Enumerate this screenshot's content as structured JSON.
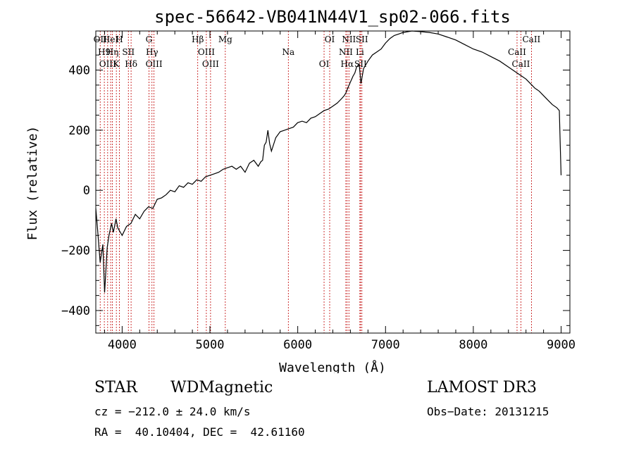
{
  "chart_data": {
    "type": "line",
    "title": "spec-56642-VB041N44V1_sp02-066.fits",
    "xlabel": "Wavelength (Å)",
    "ylabel": "Flux (relative)",
    "xlim": [
      3700,
      9100
    ],
    "ylim": [
      -475,
      530
    ],
    "xticks": [
      4000,
      5000,
      6000,
      7000,
      8000,
      9000
    ],
    "xtick_labels": [
      "4000",
      "5000",
      "6000",
      "7000",
      "8000",
      "9000"
    ],
    "yticks": [
      -400,
      -200,
      0,
      200,
      400
    ],
    "ytick_labels": [
      "−400",
      "−200",
      "0",
      "200",
      "400"
    ],
    "series": [
      {
        "name": "spectrum",
        "x": [
          3700,
          3720,
          3750,
          3780,
          3800,
          3830,
          3850,
          3880,
          3900,
          3930,
          3950,
          3980,
          4000,
          4050,
          4100,
          4150,
          4200,
          4250,
          4300,
          4350,
          4400,
          4450,
          4500,
          4550,
          4600,
          4650,
          4700,
          4750,
          4800,
          4850,
          4900,
          4950,
          5000,
          5050,
          5100,
          5150,
          5200,
          5250,
          5300,
          5350,
          5400,
          5450,
          5500,
          5550,
          5580,
          5600,
          5620,
          5640,
          5660,
          5680,
          5700,
          5750,
          5800,
          5850,
          5900,
          5950,
          6000,
          6050,
          6100,
          6150,
          6200,
          6250,
          6300,
          6350,
          6400,
          6450,
          6500,
          6530,
          6550,
          6570,
          6600,
          6630,
          6650,
          6670,
          6700,
          6720,
          6750,
          6800,
          6850,
          6900,
          6950,
          7000,
          7050,
          7100,
          7150,
          7200,
          7300,
          7400,
          7500,
          7600,
          7700,
          7800,
          7900,
          8000,
          8100,
          8200,
          8300,
          8400,
          8500,
          8550,
          8600,
          8650,
          8700,
          8750,
          8800,
          8850,
          8900,
          8950,
          8980,
          8990,
          9000
        ],
        "y": [
          -60,
          -130,
          -240,
          -180,
          -340,
          -190,
          -150,
          -110,
          -140,
          -95,
          -125,
          -140,
          -150,
          -120,
          -110,
          -80,
          -95,
          -70,
          -55,
          -60,
          -30,
          -25,
          -15,
          0,
          -5,
          15,
          10,
          25,
          20,
          35,
          30,
          45,
          50,
          55,
          60,
          70,
          75,
          80,
          70,
          80,
          60,
          90,
          100,
          80,
          95,
          100,
          150,
          160,
          200,
          155,
          130,
          175,
          195,
          200,
          205,
          210,
          225,
          230,
          225,
          240,
          245,
          255,
          265,
          270,
          280,
          290,
          305,
          315,
          325,
          340,
          360,
          380,
          390,
          410,
          420,
          355,
          405,
          430,
          450,
          460,
          470,
          490,
          505,
          515,
          520,
          525,
          530,
          528,
          525,
          520,
          510,
          500,
          485,
          470,
          460,
          445,
          430,
          410,
          390,
          380,
          370,
          355,
          340,
          330,
          315,
          300,
          285,
          275,
          265,
          150,
          50
        ]
      }
    ],
    "spectral_lines": [
      {
        "x": 3750,
        "label": "OII"
      },
      {
        "x": 3797,
        "label": "H9"
      },
      {
        "x": 3835,
        "label": "OIII"
      },
      {
        "x": 3869,
        "label": "HeI"
      },
      {
        "x": 3889,
        "label": "Hη"
      },
      {
        "x": 3934,
        "label": "K"
      },
      {
        "x": 3969,
        "label": "H"
      },
      {
        "x": 4071,
        "label": "SII"
      },
      {
        "x": 4102,
        "label": "Hδ"
      },
      {
        "x": 4305,
        "label": "G"
      },
      {
        "x": 4340,
        "label": "Hγ"
      },
      {
        "x": 4363,
        "label": "OIII"
      },
      {
        "x": 4861,
        "label": "Hβ"
      },
      {
        "x": 4959,
        "label": "OIII"
      },
      {
        "x": 5007,
        "label": "OIII"
      },
      {
        "x": 5175,
        "label": "Mg"
      },
      {
        "x": 5893,
        "label": "Na"
      },
      {
        "x": 6300,
        "label": "OI"
      },
      {
        "x": 6364,
        "label": "OI"
      },
      {
        "x": 6548,
        "label": "NII"
      },
      {
        "x": 6563,
        "label": "Hα"
      },
      {
        "x": 6583,
        "label": "NII"
      },
      {
        "x": 6708,
        "label": "Li"
      },
      {
        "x": 6716,
        "label": "SII"
      },
      {
        "x": 6731,
        "label": "SII"
      },
      {
        "x": 8498,
        "label": "CaII"
      },
      {
        "x": 8542,
        "label": "CaII"
      },
      {
        "x": 8662,
        "label": "CaII"
      }
    ]
  },
  "info": {
    "object_class": "STAR",
    "subclass": "WDMagnetic",
    "survey": "LAMOST DR3",
    "cz": "cz = −212.0 ± 24.0 km/s",
    "obs_date": "Obs−Date: 20131215",
    "coords": "RA =  40.10404, DEC =  42.61160"
  }
}
